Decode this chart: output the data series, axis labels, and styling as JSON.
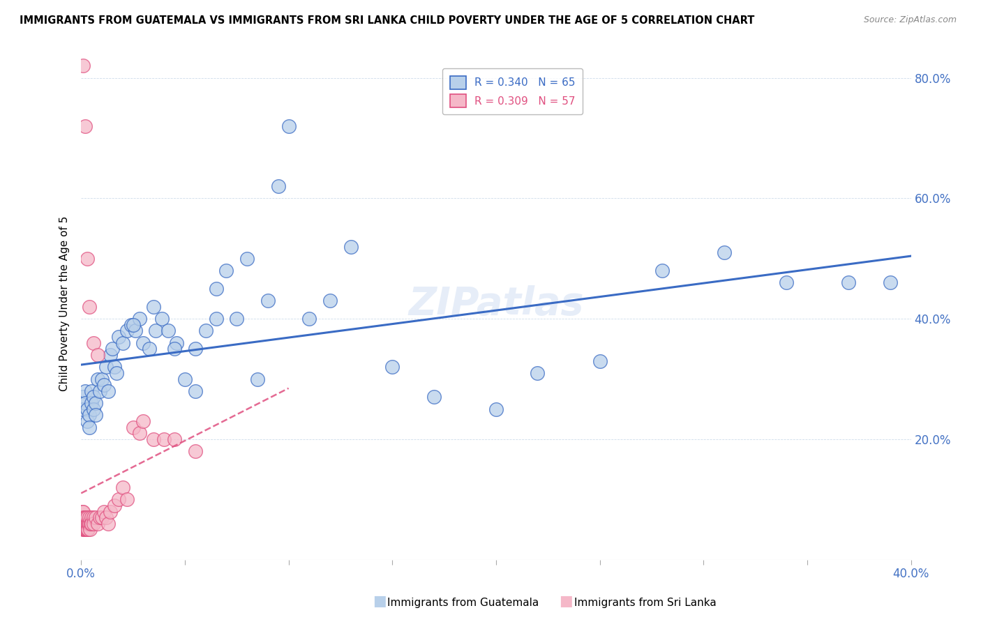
{
  "title": "IMMIGRANTS FROM GUATEMALA VS IMMIGRANTS FROM SRI LANKA CHILD POVERTY UNDER THE AGE OF 5 CORRELATION CHART",
  "source": "Source: ZipAtlas.com",
  "ylabel": "Child Poverty Under the Age of 5",
  "r_guatemala": 0.34,
  "n_guatemala": 65,
  "r_srilanka": 0.309,
  "n_srilanka": 57,
  "color_guatemala": "#b8d0ea",
  "color_srilanka": "#f5b8c8",
  "line_color_guatemala": "#3a6bc4",
  "line_color_srilanka": "#e05080",
  "watermark": "ZIPatlas",
  "guatemala_x": [
    0.001,
    0.001,
    0.002,
    0.002,
    0.003,
    0.003,
    0.004,
    0.004,
    0.005,
    0.005,
    0.006,
    0.006,
    0.007,
    0.007,
    0.008,
    0.009,
    0.01,
    0.011,
    0.012,
    0.013,
    0.014,
    0.015,
    0.016,
    0.017,
    0.018,
    0.02,
    0.022,
    0.024,
    0.026,
    0.028,
    0.03,
    0.033,
    0.036,
    0.039,
    0.042,
    0.046,
    0.05,
    0.055,
    0.06,
    0.065,
    0.07,
    0.075,
    0.08,
    0.09,
    0.1,
    0.11,
    0.12,
    0.13,
    0.15,
    0.17,
    0.2,
    0.22,
    0.25,
    0.28,
    0.31,
    0.34,
    0.37,
    0.39,
    0.025,
    0.035,
    0.045,
    0.055,
    0.065,
    0.085,
    0.095
  ],
  "guatemala_y": [
    0.27,
    0.25,
    0.28,
    0.26,
    0.25,
    0.23,
    0.24,
    0.22,
    0.28,
    0.26,
    0.27,
    0.25,
    0.26,
    0.24,
    0.3,
    0.28,
    0.3,
    0.29,
    0.32,
    0.28,
    0.34,
    0.35,
    0.32,
    0.31,
    0.37,
    0.36,
    0.38,
    0.39,
    0.38,
    0.4,
    0.36,
    0.35,
    0.38,
    0.4,
    0.38,
    0.36,
    0.3,
    0.35,
    0.38,
    0.45,
    0.48,
    0.4,
    0.5,
    0.43,
    0.72,
    0.4,
    0.43,
    0.52,
    0.32,
    0.27,
    0.25,
    0.31,
    0.33,
    0.48,
    0.51,
    0.46,
    0.46,
    0.46,
    0.39,
    0.42,
    0.35,
    0.28,
    0.4,
    0.3,
    0.62
  ],
  "srilanka_x": [
    0.0005,
    0.0006,
    0.0007,
    0.0008,
    0.0009,
    0.001,
    0.001,
    0.0012,
    0.0013,
    0.0014,
    0.0015,
    0.0016,
    0.0017,
    0.0018,
    0.0019,
    0.002,
    0.002,
    0.0021,
    0.0022,
    0.0023,
    0.0024,
    0.0025,
    0.0026,
    0.0027,
    0.0028,
    0.003,
    0.003,
    0.0032,
    0.0034,
    0.0036,
    0.004,
    0.004,
    0.0042,
    0.0045,
    0.005,
    0.005,
    0.006,
    0.006,
    0.007,
    0.008,
    0.009,
    0.01,
    0.011,
    0.012,
    0.013,
    0.014,
    0.016,
    0.018,
    0.02,
    0.022,
    0.025,
    0.028,
    0.03,
    0.035,
    0.04,
    0.045,
    0.055
  ],
  "srilanka_y": [
    0.08,
    0.07,
    0.06,
    0.05,
    0.06,
    0.07,
    0.08,
    0.06,
    0.05,
    0.07,
    0.06,
    0.05,
    0.06,
    0.07,
    0.05,
    0.06,
    0.07,
    0.05,
    0.06,
    0.05,
    0.07,
    0.06,
    0.05,
    0.06,
    0.05,
    0.06,
    0.07,
    0.06,
    0.05,
    0.06,
    0.06,
    0.07,
    0.05,
    0.06,
    0.07,
    0.06,
    0.07,
    0.06,
    0.07,
    0.06,
    0.07,
    0.07,
    0.08,
    0.07,
    0.06,
    0.08,
    0.09,
    0.1,
    0.12,
    0.1,
    0.22,
    0.21,
    0.23,
    0.2,
    0.2,
    0.2,
    0.18
  ],
  "srilanka_outliers_x": [
    0.001,
    0.002,
    0.003,
    0.004,
    0.006,
    0.008
  ],
  "srilanka_outliers_y": [
    0.82,
    0.72,
    0.5,
    0.42,
    0.36,
    0.34
  ],
  "xlim": [
    0.0,
    0.4
  ],
  "ylim": [
    0.0,
    0.85
  ],
  "yticks": [
    0.0,
    0.2,
    0.4,
    0.6,
    0.8
  ],
  "xticks": [
    0.0,
    0.05,
    0.1,
    0.15,
    0.2,
    0.25,
    0.3,
    0.35,
    0.4
  ]
}
